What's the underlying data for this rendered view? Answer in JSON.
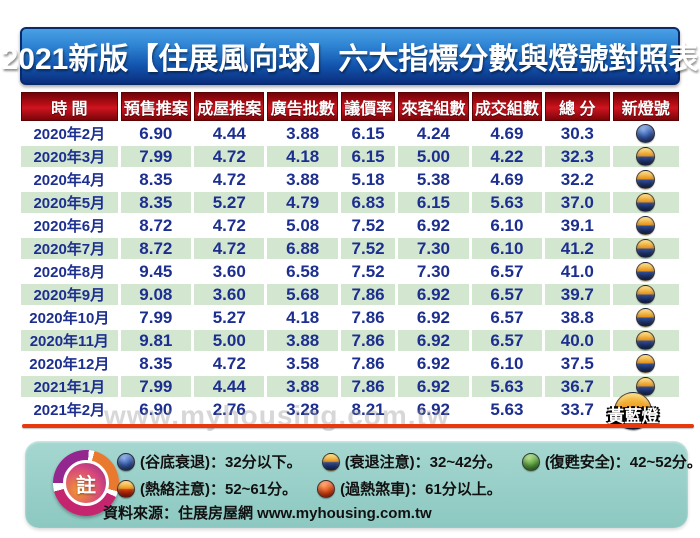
{
  "title": "2021新版【住展風向球】六大指標分數與燈號對照表",
  "chart_data": {
    "type": "table",
    "title": "2021新版【住展風向球】六大指標分數與燈號對照表",
    "columns": [
      "時 間",
      "預售推案",
      "成屋推案",
      "廣告批數",
      "議價率",
      "來客組數",
      "成交組數",
      "總 分",
      "新燈號"
    ],
    "rows": [
      {
        "time": "2020年2月",
        "values": [
          "6.90",
          "4.44",
          "3.88",
          "6.15",
          "4.24",
          "4.69",
          "30.3"
        ],
        "light": "blue"
      },
      {
        "time": "2020年3月",
        "values": [
          "7.99",
          "4.72",
          "4.18",
          "6.15",
          "5.00",
          "4.22",
          "32.3"
        ],
        "light": "yellow-blue"
      },
      {
        "time": "2020年4月",
        "values": [
          "8.35",
          "4.72",
          "3.88",
          "5.18",
          "5.38",
          "4.69",
          "32.2"
        ],
        "light": "yellow-blue"
      },
      {
        "time": "2020年5月",
        "values": [
          "8.35",
          "5.27",
          "4.79",
          "6.83",
          "6.15",
          "5.63",
          "37.0"
        ],
        "light": "yellow-blue"
      },
      {
        "time": "2020年6月",
        "values": [
          "8.72",
          "4.72",
          "5.08",
          "7.52",
          "6.92",
          "6.10",
          "39.1"
        ],
        "light": "yellow-blue"
      },
      {
        "time": "2020年7月",
        "values": [
          "8.72",
          "4.72",
          "6.88",
          "7.52",
          "7.30",
          "6.10",
          "41.2"
        ],
        "light": "yellow-blue"
      },
      {
        "time": "2020年8月",
        "values": [
          "9.45",
          "3.60",
          "6.58",
          "7.52",
          "7.30",
          "6.57",
          "41.0"
        ],
        "light": "yellow-blue"
      },
      {
        "time": "2020年9月",
        "values": [
          "9.08",
          "3.60",
          "5.68",
          "7.86",
          "6.92",
          "6.57",
          "39.7"
        ],
        "light": "yellow-blue"
      },
      {
        "time": "2020年10月",
        "values": [
          "7.99",
          "5.27",
          "4.18",
          "7.86",
          "6.92",
          "6.57",
          "38.8"
        ],
        "light": "yellow-blue"
      },
      {
        "time": "2020年11月",
        "values": [
          "9.81",
          "5.00",
          "3.88",
          "7.86",
          "6.92",
          "6.57",
          "40.0"
        ],
        "light": "yellow-blue"
      },
      {
        "time": "2020年12月",
        "values": [
          "8.35",
          "4.72",
          "3.58",
          "7.86",
          "6.92",
          "6.10",
          "37.5"
        ],
        "light": "yellow-blue"
      },
      {
        "time": "2021年1月",
        "values": [
          "7.99",
          "4.44",
          "3.88",
          "7.86",
          "6.92",
          "5.63",
          "36.7"
        ],
        "light": "yellow-blue"
      },
      {
        "time": "2021年2月",
        "values": [
          "6.90",
          "2.76",
          "3.28",
          "8.21",
          "6.92",
          "5.63",
          "33.7"
        ],
        "light": "yellow-blue",
        "big_light_label": "黃藍燈"
      }
    ]
  },
  "last_light_label": "黃藍燈",
  "watermark": "www.myhousing.com.tw",
  "legend": {
    "note_label": "註",
    "items": [
      {
        "light": "blue",
        "label": "(谷底衰退)：32分以下。"
      },
      {
        "light": "yellow-blue",
        "label": "(衰退注意)：32~42分。"
      },
      {
        "light": "green",
        "label": "(復甦安全)：42~52分。"
      },
      {
        "light": "yellow-red",
        "label": "(熱絡注意)：52~61分。"
      },
      {
        "light": "red",
        "label": "(過熱煞車)：61分以上。"
      }
    ],
    "source": "資料來源：住展房屋網 www.myhousing.com.tw"
  },
  "colors": {
    "title_bar_blue": "#1254ae",
    "header_red": "#b50d14",
    "row_stripe_green": "#d2e6d0",
    "value_text_navy": "#1c2f8f",
    "divider_red": "#e8380d",
    "legend_bg_teal": "#8cc8c1",
    "light_blue": "#3a5fb0",
    "light_yellow": "#ec9517",
    "light_green": "#55a23f",
    "light_red": "#e04515"
  }
}
